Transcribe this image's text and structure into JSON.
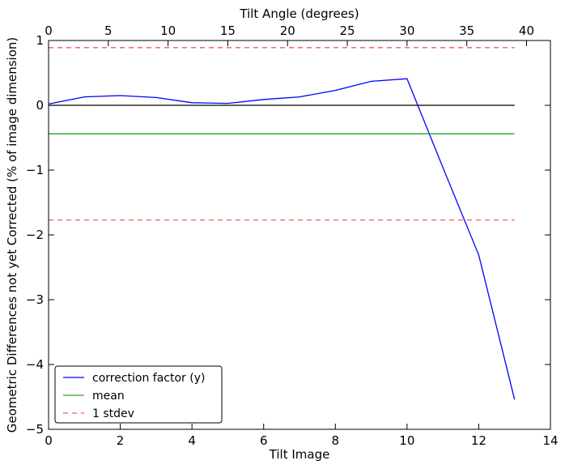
{
  "chart_data": {
    "type": "line",
    "title": "",
    "xlabel": "Tilt Image",
    "ylabel": "Geometric Differences not yet Corrected (% of image dimension)",
    "x2label": "Tilt Angle (degrees)",
    "xlim": [
      0,
      14
    ],
    "ylim": [
      -5,
      1
    ],
    "x2lim": [
      0,
      42
    ],
    "xticks": [
      0,
      2,
      4,
      6,
      8,
      10,
      12,
      14
    ],
    "yticks": [
      -5,
      -4,
      -3,
      -2,
      -1,
      0,
      1
    ],
    "x2ticks": [
      0,
      5,
      10,
      15,
      20,
      25,
      30,
      35,
      40
    ],
    "grid": false,
    "legend_position": "lower-left",
    "series": [
      {
        "name": "correction factor (y)",
        "style": "solid",
        "color": "#0000ff",
        "x": [
          0,
          1,
          2,
          3,
          4,
          5,
          6,
          7,
          8,
          9,
          10,
          11,
          12,
          13
        ],
        "y": [
          0.02,
          0.13,
          0.15,
          0.12,
          0.04,
          0.03,
          0.09,
          0.13,
          0.23,
          0.37,
          0.41,
          -0.96,
          -2.31,
          -4.54
        ]
      },
      {
        "name": "mean",
        "style": "solid",
        "color": "#2ca02c",
        "x": [
          0,
          13
        ],
        "y": [
          -0.44,
          -0.44
        ]
      },
      {
        "name": "1 stdev",
        "style": "dashed",
        "color": "#ff5555",
        "x": [
          0,
          13
        ],
        "y": [
          0.89,
          0.89
        ]
      },
      {
        "name": "",
        "style": "dashed",
        "color": "#ff5555",
        "x": [
          0,
          13
        ],
        "y": [
          -1.77,
          -1.77
        ]
      },
      {
        "name": "",
        "style": "solid",
        "color": "#000000",
        "x": [
          0,
          13
        ],
        "y": [
          0,
          0
        ]
      }
    ]
  }
}
